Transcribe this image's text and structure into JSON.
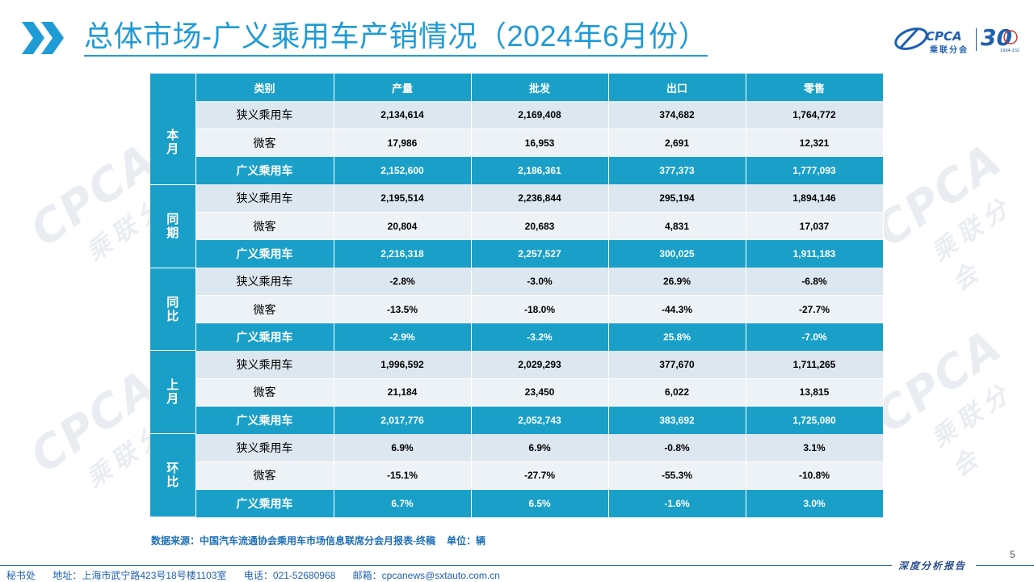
{
  "title": "总体市场-广义乘用车产销情况（2024年6月份）",
  "logo": {
    "brand": "CPCA",
    "subtitle": "乘联分会",
    "anniversary": "30",
    "years": "1994-2024"
  },
  "watermark": {
    "brand": "CPCA",
    "subtitle": "乘联分会"
  },
  "table": {
    "headers": [
      "类别",
      "产量",
      "批发",
      "出口",
      "零售"
    ],
    "groups": [
      {
        "label": "本\n月",
        "rows": [
          {
            "cat": "狭义乘用车",
            "values": [
              "2,134,614",
              "2,169,408",
              "374,682",
              "1,764,772"
            ]
          },
          {
            "cat": "微客",
            "values": [
              "17,986",
              "16,953",
              "2,691",
              "12,321"
            ]
          },
          {
            "cat": "广义乘用车",
            "values": [
              "2,152,600",
              "2,186,361",
              "377,373",
              "1,777,093"
            ]
          }
        ]
      },
      {
        "label": "同\n期",
        "rows": [
          {
            "cat": "狭义乘用车",
            "values": [
              "2,195,514",
              "2,236,844",
              "295,194",
              "1,894,146"
            ]
          },
          {
            "cat": "微客",
            "values": [
              "20,804",
              "20,683",
              "4,831",
              "17,037"
            ]
          },
          {
            "cat": "广义乘用车",
            "values": [
              "2,216,318",
              "2,257,527",
              "300,025",
              "1,911,183"
            ]
          }
        ]
      },
      {
        "label": "同\n比",
        "rows": [
          {
            "cat": "狭义乘用车",
            "values": [
              "-2.8%",
              "-3.0%",
              "26.9%",
              "-6.8%"
            ]
          },
          {
            "cat": "微客",
            "values": [
              "-13.5%",
              "-18.0%",
              "-44.3%",
              "-27.7%"
            ]
          },
          {
            "cat": "广义乘用车",
            "values": [
              "-2.9%",
              "-3.2%",
              "25.8%",
              "-7.0%"
            ]
          }
        ]
      },
      {
        "label": "上\n月",
        "rows": [
          {
            "cat": "狭义乘用车",
            "values": [
              "1,996,592",
              "2,029,293",
              "377,670",
              "1,711,265"
            ]
          },
          {
            "cat": "微客",
            "values": [
              "21,184",
              "23,450",
              "6,022",
              "13,815"
            ]
          },
          {
            "cat": "广义乘用车",
            "values": [
              "2,017,776",
              "2,052,743",
              "383,692",
              "1,725,080"
            ]
          }
        ]
      },
      {
        "label": "环\n比",
        "rows": [
          {
            "cat": "狭义乘用车",
            "values": [
              "6.9%",
              "6.9%",
              "-0.8%",
              "3.1%"
            ]
          },
          {
            "cat": "微客",
            "values": [
              "-15.1%",
              "-27.7%",
              "-55.3%",
              "-10.8%"
            ]
          },
          {
            "cat": "广义乘用车",
            "values": [
              "6.7%",
              "6.5%",
              "-1.6%",
              "3.0%"
            ]
          }
        ]
      }
    ]
  },
  "source": "数据来源：中国汽车流通协会乘用车市场信息联席分会月报表-终稿",
  "unit": "单位：辆",
  "page_number": "5",
  "report_label": "深度分析报告",
  "footer": {
    "office": "秘书处",
    "address": "地址：上海市武宁路423号18号楼1103室",
    "phone": "电话：021-52680968",
    "email": "邮箱：cpcanews@sxtauto.com.cn"
  },
  "colors": {
    "accent": "#1aa0c8",
    "title": "#1f9bd6",
    "row_dark": "#dde7ef",
    "row_light": "#edf2f7",
    "footer": "#1f5fb0"
  }
}
